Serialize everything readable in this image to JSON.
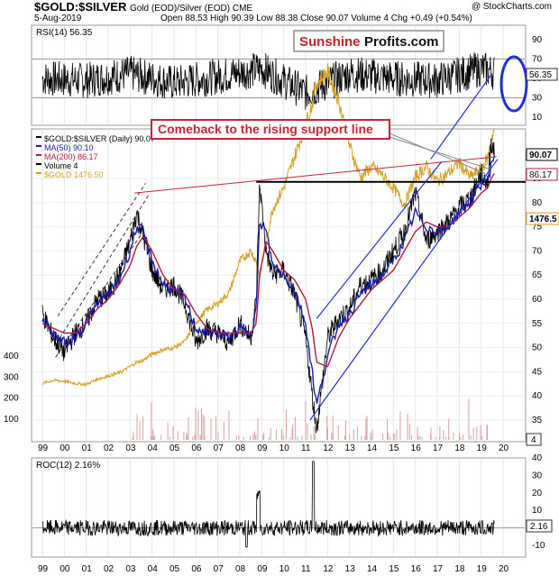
{
  "header": {
    "symbol": "$GOLD:$SILVER",
    "desc": "Gold (EOD)/Silver (EOD) CME",
    "watermark": "@ StockCharts.com",
    "date": "5-Aug-2019",
    "ohlc": "Open 88.53  High 90.39  Low 88.38  Close 90.07  Volume 4  Chg +0.49 (+0.54%)"
  },
  "logo": {
    "part1": "Sunshine",
    "part2": "Profits.com"
  },
  "rsi": {
    "label": "RSI(14) 56.35",
    "badge": "56.35",
    "ticks": [
      "90",
      "70",
      "50",
      "30",
      "10"
    ]
  },
  "main": {
    "legend": [
      {
        "text": "$GOLD:$SILVER (Daily) 90.07",
        "color": "#000000"
      },
      {
        "text": "MA(50) 90.10",
        "color": "#1a1aa6"
      },
      {
        "text": "MA(200) 86.17",
        "color": "#b01a3a"
      },
      {
        "text": "Volume 4",
        "color": "#000000"
      },
      {
        "text": "$GOLD 1476.50",
        "color": "#d4a020"
      }
    ],
    "annotation": "Comeback to the rising support line",
    "right_ticks": [
      "85",
      "80",
      "75",
      "70",
      "65",
      "60",
      "55",
      "50",
      "45",
      "40",
      "35"
    ],
    "left_ticks": [
      "400",
      "300",
      "200",
      "100"
    ],
    "badges": {
      "price": "90.07",
      "ma200": "86.17",
      "gold": "1476.5",
      "volume": "4"
    }
  },
  "roc": {
    "label": "ROC(12) 2.16%",
    "badge": "2.16",
    "ticks": [
      "40",
      "30",
      "20",
      "10",
      "0",
      "-10"
    ]
  },
  "xaxis": {
    "labels": [
      "99",
      "00",
      "01",
      "02",
      "03",
      "04",
      "05",
      "06",
      "07",
      "08",
      "09",
      "10",
      "11",
      "12",
      "13",
      "14",
      "15",
      "16",
      "17",
      "18",
      "19",
      "20"
    ]
  },
  "colors": {
    "price": "#000000",
    "ma50": "#1a1aa6",
    "ma200": "#b01a3a",
    "gold": "#d4a020",
    "support": "#1f2fe0",
    "resistance": "#cc2233",
    "annotation_border": "#cc2233",
    "ellipse": "#1f2fe0"
  },
  "chart_data": [
    {
      "type": "line",
      "title": "$GOLD:$SILVER",
      "xlabel": "",
      "ylabel": "",
      "ylim": [
        30,
        95
      ],
      "x": [
        1999.0,
        1999.5,
        2000.0,
        2000.5,
        2001.0,
        2001.5,
        2002.0,
        2002.5,
        2003.0,
        2003.3,
        2003.6,
        2004.0,
        2004.5,
        2005.0,
        2005.5,
        2006.0,
        2006.5,
        2007.0,
        2007.5,
        2008.0,
        2008.5,
        2008.75,
        2008.9,
        2009.2,
        2009.5,
        2010.0,
        2010.5,
        2011.0,
        2011.3,
        2011.5,
        2012.0,
        2012.5,
        2013.0,
        2013.5,
        2014.0,
        2014.5,
        2015.0,
        2015.5,
        2016.0,
        2016.5,
        2017.0,
        2017.5,
        2018.0,
        2018.5,
        2019.0,
        2019.3,
        2019.45,
        2019.6
      ],
      "series": [
        {
          "name": "$GOLD:$SILVER",
          "values": [
            57,
            52,
            49,
            53,
            55,
            60,
            61,
            65,
            72,
            78,
            73,
            66,
            62,
            63,
            59,
            51,
            54,
            53,
            51,
            55,
            52,
            60,
            84,
            70,
            65,
            66,
            61,
            52,
            40,
            33,
            52,
            56,
            58,
            63,
            64,
            66,
            70,
            74,
            82,
            72,
            74,
            76,
            79,
            81,
            86,
            84,
            93,
            90
          ]
        },
        {
          "name": "MA(50)",
          "values": [
            56,
            53,
            51,
            52,
            55,
            59,
            61,
            64,
            70,
            75,
            74,
            68,
            63,
            62,
            60,
            54,
            53,
            53,
            52,
            54,
            53,
            58,
            76,
            74,
            67,
            65,
            62,
            55,
            45,
            38,
            48,
            55,
            57,
            61,
            63,
            65,
            68,
            72,
            78,
            75,
            74,
            75,
            78,
            80,
            84,
            84,
            88,
            90
          ]
        },
        {
          "name": "MA(200)",
          "values": [
            55,
            54,
            53,
            53,
            55,
            58,
            60,
            63,
            67,
            71,
            73,
            70,
            65,
            62,
            61,
            57,
            54,
            53,
            53,
            53,
            53,
            55,
            65,
            72,
            70,
            66,
            64,
            60,
            54,
            47,
            46,
            52,
            56,
            59,
            62,
            64,
            66,
            70,
            74,
            76,
            75,
            75,
            77,
            79,
            82,
            83,
            85,
            86
          ]
        },
        {
          "name": "$GOLD",
          "values": [
            270,
            285,
            280,
            270,
            265,
            290,
            305,
            320,
            350,
            370,
            380,
            410,
            430,
            440,
            470,
            560,
            620,
            650,
            700,
            850,
            900,
            850,
            780,
            950,
            1100,
            1200,
            1350,
            1500,
            1600,
            1700,
            1750,
            1620,
            1400,
            1250,
            1300,
            1260,
            1200,
            1120,
            1250,
            1300,
            1230,
            1270,
            1320,
            1250,
            1290,
            1340,
            1430,
            1476
          ]
        }
      ]
    },
    {
      "type": "line",
      "title": "RSI(14)",
      "ylim": [
        0,
        100
      ],
      "x": [
        1999.0,
        2001.0,
        2003.0,
        2005.0,
        2007.0,
        2009.0,
        2011.0,
        2013.0,
        2015.0,
        2017.0,
        2019.0,
        2019.6
      ],
      "series": [
        {
          "name": "RSI(14)",
          "values": [
            50,
            48,
            55,
            45,
            52,
            60,
            35,
            55,
            50,
            48,
            60,
            56.35
          ]
        }
      ]
    },
    {
      "type": "line",
      "title": "ROC(12)",
      "ylim": [
        -15,
        42
      ],
      "x": [
        1999.0,
        2001.0,
        2003.0,
        2005.0,
        2007.0,
        2008.8,
        2009.0,
        2011.0,
        2011.3,
        2013.0,
        2015.0,
        2017.0,
        2019.0,
        2019.6
      ],
      "series": [
        {
          "name": "ROC(12)",
          "values": [
            0,
            1,
            0,
            -2,
            1,
            20,
            5,
            -8,
            38,
            2,
            1,
            -1,
            3,
            2.16
          ]
        }
      ]
    }
  ]
}
